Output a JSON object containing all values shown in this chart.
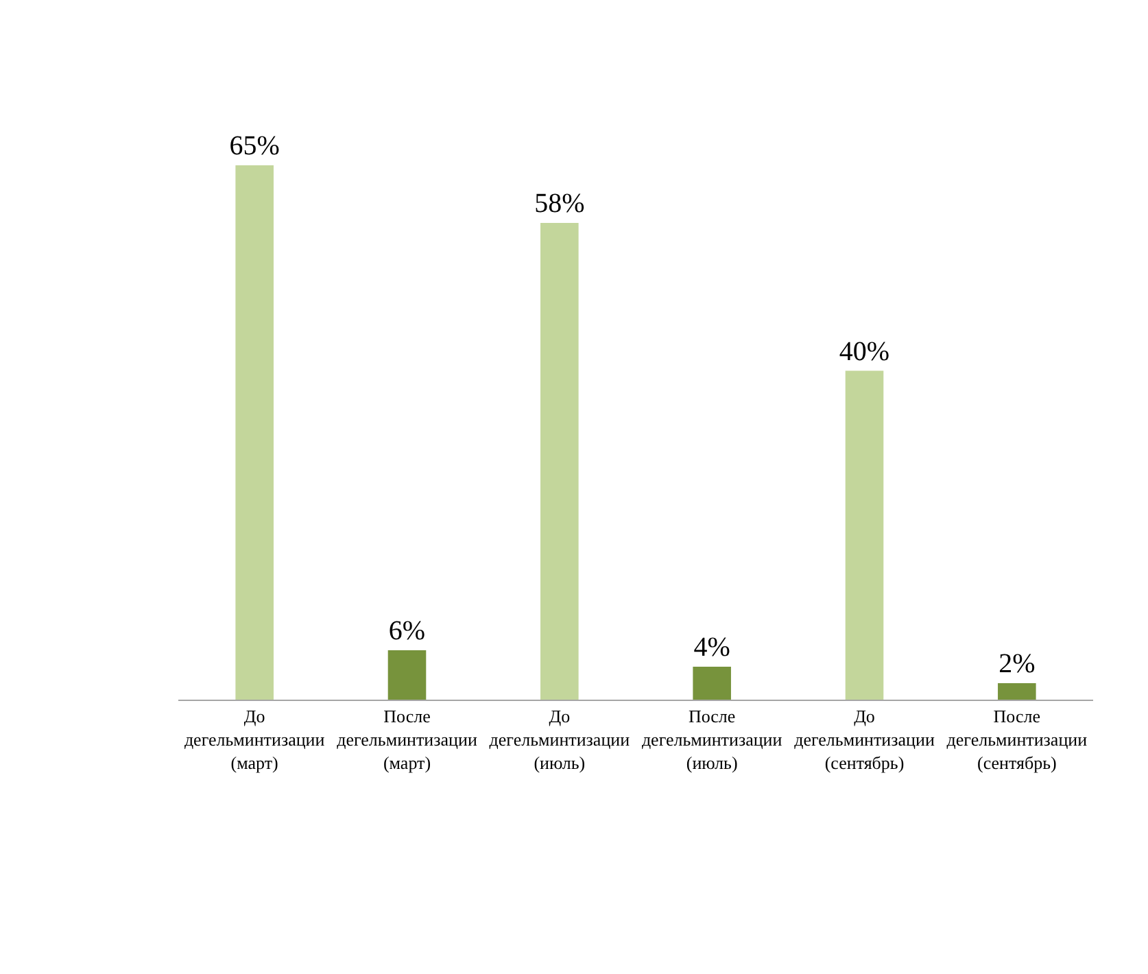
{
  "chart_data": {
    "type": "bar",
    "categories": [
      "До дегельминтизации (март)",
      "После дегельминтизации (март)",
      "До дегельминтизации (июль)",
      "После дегельминтизации (июль)",
      "До дегельминтизации (сентябрь)",
      "После дегельминтизации (сентябрь)"
    ],
    "values": [
      65,
      6,
      58,
      4,
      40,
      2
    ],
    "colors": [
      "#c3d69b",
      "#77933c",
      "#c3d69b",
      "#77933c",
      "#c3d69b",
      "#77933c"
    ],
    "value_labels": [
      "65%",
      "6%",
      "58%",
      "4%",
      "40%",
      "2%"
    ],
    "tick_labels": "x"
  }
}
